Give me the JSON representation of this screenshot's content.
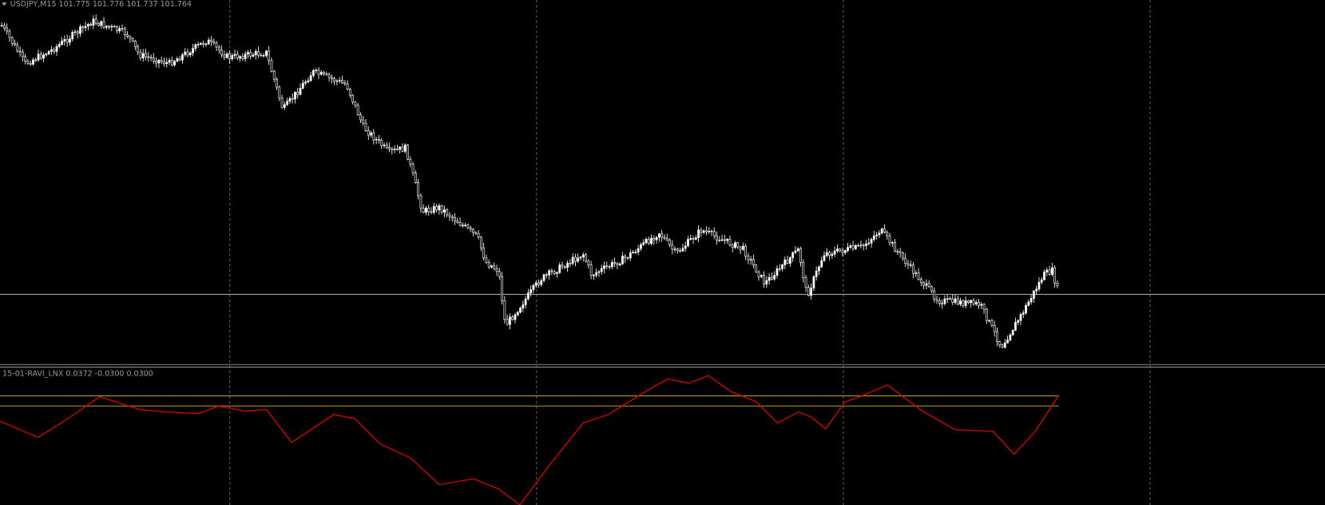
{
  "price_panel": {
    "header": "USDJPY,M15  101.775 101.776 101.737 101.764"
  },
  "indicator_panel": {
    "header": "15-01-RAVI_LNX 0.0372 -0.0300 0.0300"
  }
}
